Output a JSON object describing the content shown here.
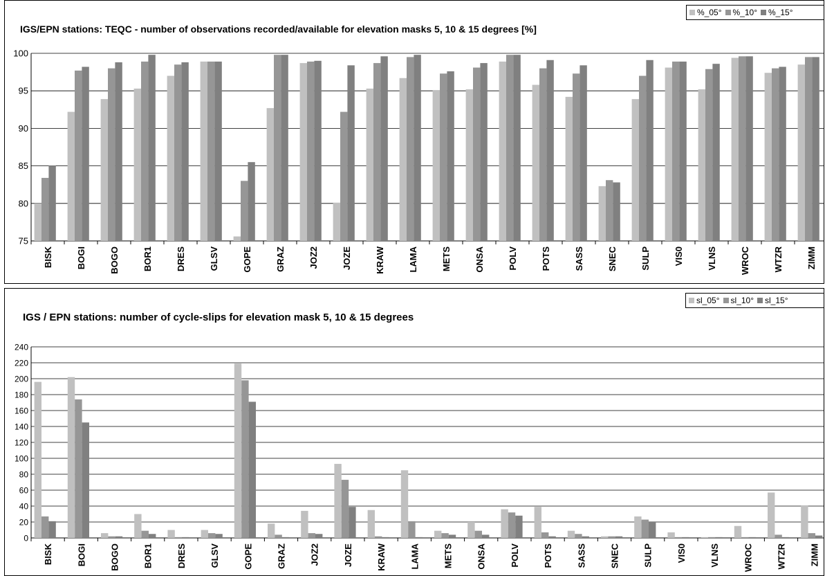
{
  "colors": {
    "s05": "#c0c0c0",
    "s10": "#969696",
    "s15": "#808080"
  },
  "chart_data": [
    {
      "type": "bar",
      "title": "IGS/EPN stations: TEQC - number of observations recorded/available for elevation masks 5, 10 & 15 degrees [%]",
      "categories": [
        "BISK",
        "BOGI",
        "BOGO",
        "BOR1",
        "DRES",
        "GLSV",
        "GOPE",
        "GRAZ",
        "JOZ2",
        "JOZE",
        "KRAW",
        "LAMA",
        "METS",
        "ONSA",
        "POLV",
        "POTS",
        "SASS",
        "SNEC",
        "SULP",
        "VIS0",
        "VLNS",
        "WROC",
        "WTZR",
        "ZIMM"
      ],
      "series": [
        {
          "name": "%_05°",
          "values": [
            80.0,
            92.2,
            93.9,
            95.3,
            97.0,
            98.9,
            75.6,
            92.7,
            98.7,
            80.1,
            95.3,
            96.7,
            95.1,
            95.2,
            98.9,
            95.8,
            94.2,
            82.3,
            93.9,
            98.1,
            95.2,
            99.4,
            97.4,
            98.5
          ]
        },
        {
          "name": "%_10°",
          "values": [
            83.4,
            97.7,
            98.0,
            98.9,
            98.5,
            98.9,
            83.0,
            99.8,
            98.9,
            92.2,
            98.7,
            99.5,
            97.3,
            98.1,
            99.8,
            98.0,
            97.3,
            83.1,
            97.0,
            98.9,
            97.9,
            99.6,
            98.0,
            99.5
          ]
        },
        {
          "name": "%_15°",
          "values": [
            85.0,
            98.2,
            98.8,
            99.8,
            98.8,
            98.9,
            85.5,
            99.8,
            99.0,
            98.4,
            99.6,
            99.8,
            97.6,
            98.7,
            99.8,
            99.1,
            98.4,
            82.8,
            99.1,
            98.9,
            98.6,
            99.6,
            98.2,
            99.5
          ]
        }
      ],
      "ylim": [
        75,
        100
      ],
      "yticks": [
        75,
        80,
        85,
        90,
        95,
        100
      ],
      "grid": true,
      "legend": "top-right"
    },
    {
      "type": "bar",
      "title": "IGS / EPN stations: number of cycle-slips for elevation mask 5, 10 & 15 degrees",
      "categories": [
        "BISK",
        "BOGI",
        "BOGO",
        "BOR1",
        "DRES",
        "GLSV",
        "GOPE",
        "GRAZ",
        "JOZ2",
        "JOZE",
        "KRAW",
        "LAMA",
        "METS",
        "ONSA",
        "POLV",
        "POTS",
        "SASS",
        "SNEC",
        "SULP",
        "VIS0",
        "VLNS",
        "WROC",
        "WTZR",
        "ZIMM"
      ],
      "series": [
        {
          "name": "sl_05°",
          "values": [
            196,
            202,
            6,
            30,
            10,
            10,
            219,
            18,
            34,
            93,
            35,
            85,
            9,
            20,
            36,
            39,
            9,
            2,
            27,
            7,
            1,
            15,
            57,
            41
          ]
        },
        {
          "name": "sl_10°",
          "values": [
            27,
            174,
            2,
            9,
            1,
            6,
            198,
            4,
            6,
            73,
            2,
            21,
            6,
            9,
            32,
            7,
            5,
            2,
            23,
            1,
            1,
            1,
            4,
            6
          ]
        },
        {
          "name": "sl_15°",
          "values": [
            21,
            145,
            2,
            5,
            1,
            5,
            171,
            1,
            5,
            39,
            1,
            1,
            4,
            4,
            28,
            2,
            2,
            2,
            20,
            1,
            1,
            1,
            1,
            3
          ]
        }
      ],
      "ylim": [
        0,
        240
      ],
      "yticks": [
        0,
        20,
        40,
        60,
        80,
        100,
        120,
        140,
        160,
        180,
        200,
        220,
        240
      ],
      "grid": true,
      "legend": "top-right"
    }
  ]
}
